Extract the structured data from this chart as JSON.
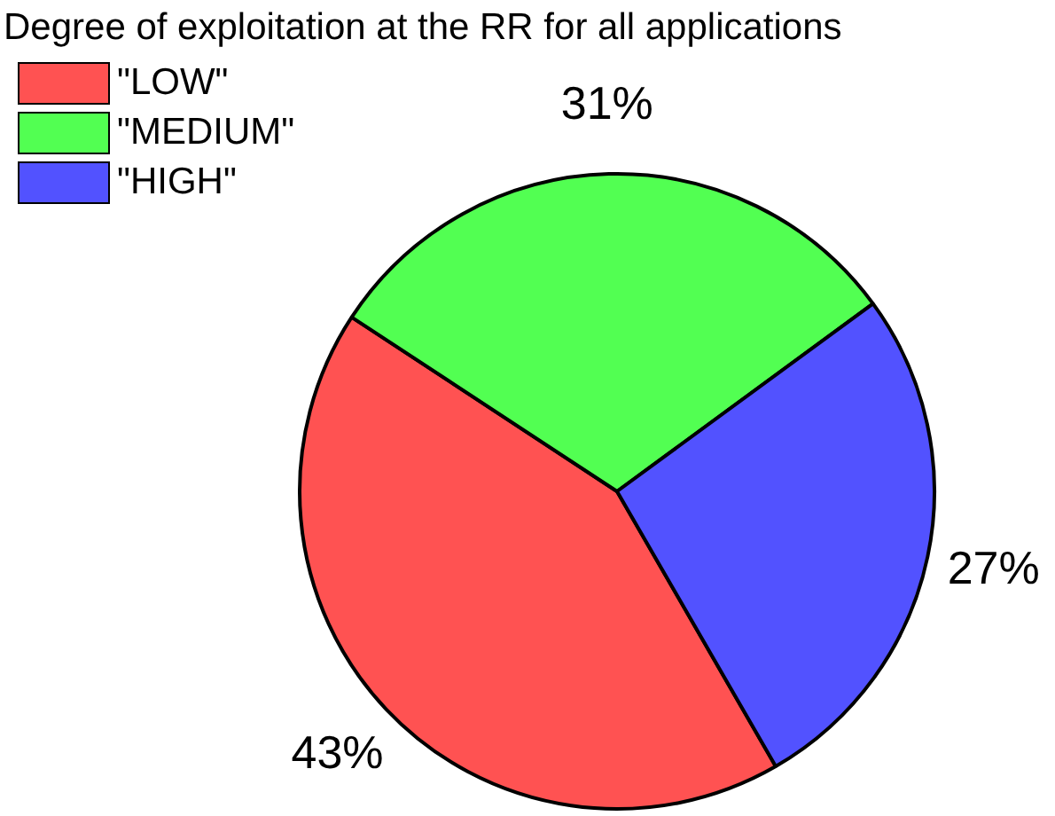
{
  "chart_data": {
    "type": "pie",
    "title": "Degree of exploitation at the RR for all applications",
    "categories": [
      "\"LOW\"",
      "\"MEDIUM\"",
      "\"HIGH\""
    ],
    "values": [
      43,
      31,
      27
    ],
    "colors": [
      "#ff5252",
      "#52ff52",
      "#5252ff"
    ],
    "value_labels": [
      "43%",
      "31%",
      "27%"
    ],
    "legend": "top left"
  }
}
